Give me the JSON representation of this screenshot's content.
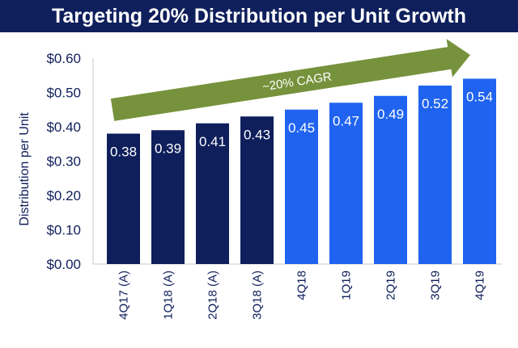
{
  "chart_data": {
    "type": "bar",
    "title": "Targeting 20% Distribution per Unit Growth",
    "ylabel": "Distribution per Unit",
    "xlabel": "",
    "ylim": [
      0,
      0.6
    ],
    "yticks": [
      "$0.00",
      "$0.10",
      "$0.20",
      "$0.30",
      "$0.40",
      "$0.50",
      "$0.60"
    ],
    "categories": [
      "4Q17 (A)",
      "1Q18 (A)",
      "2Q18 (A)",
      "3Q18 (A)",
      "4Q18",
      "1Q19",
      "2Q19",
      "3Q19",
      "4Q19"
    ],
    "values": [
      0.38,
      0.39,
      0.41,
      0.43,
      0.45,
      0.47,
      0.49,
      0.52,
      0.54
    ],
    "data_labels": [
      "0.38",
      "0.39",
      "0.41",
      "0.43",
      "0.45",
      "0.47",
      "0.49",
      "0.52",
      "0.54"
    ],
    "actual_count": 4,
    "annotation": "~20% CAGR",
    "grid": false
  },
  "colors": {
    "title_bg": "#0F1F5C",
    "actual_bar": "#0F1F5C",
    "projected_bar": "#1F63F0",
    "text": "#0F1F5C",
    "arrow": "#76923C",
    "axis": "#C8C8C8"
  }
}
